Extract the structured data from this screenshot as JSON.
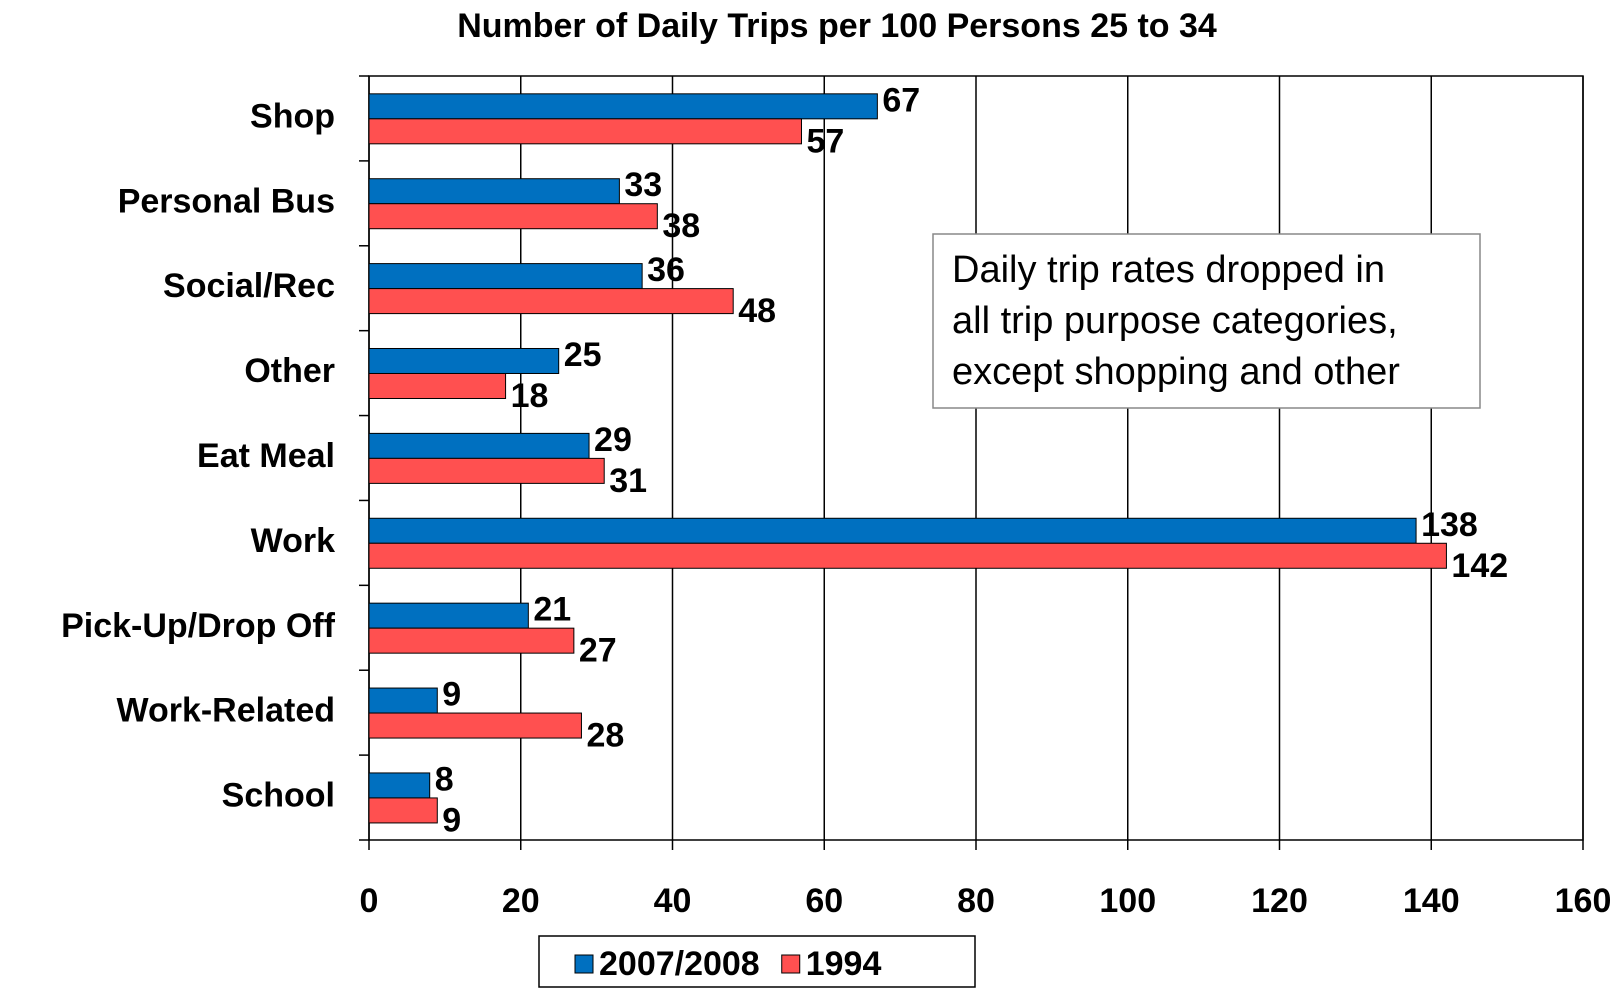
{
  "chart_data": {
    "type": "bar",
    "orientation": "horizontal",
    "title": "Number of Daily Trips per 100 Persons 25 to 34",
    "categories": [
      "Shop",
      "Personal Bus",
      "Social/Rec",
      "Other",
      "Eat Meal",
      "Work",
      "Pick-Up/Drop Off",
      "Work-Related",
      "School"
    ],
    "series": [
      {
        "name": "2007/2008",
        "color": "#0070c0",
        "values": [
          67,
          33,
          36,
          25,
          29,
          138,
          21,
          9,
          8
        ]
      },
      {
        "name": "1994",
        "color": "#ff5050",
        "values": [
          57,
          38,
          48,
          18,
          31,
          142,
          27,
          28,
          9
        ]
      }
    ],
    "xlim": [
      0,
      160
    ],
    "xticks": [
      0,
      20,
      40,
      60,
      80,
      100,
      120,
      140,
      160
    ],
    "grid": true,
    "annotation": [
      "Daily trip rates dropped in",
      "all trip purpose categories,",
      "except shopping and other"
    ],
    "legend": "bottom"
  }
}
